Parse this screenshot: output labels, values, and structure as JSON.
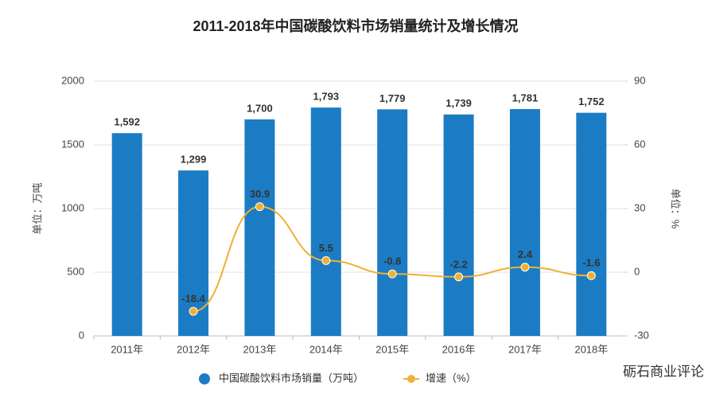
{
  "chart_data": {
    "type": "bar",
    "title": "2011-2018年中国碳酸饮料市场销量统计及增长情况",
    "categories": [
      "2011年",
      "2012年",
      "2013年",
      "2014年",
      "2015年",
      "2016年",
      "2017年",
      "2018年"
    ],
    "y_label": "单位：万吨",
    "y2_label": "单位：%",
    "ylim": [
      0,
      2000
    ],
    "yticks": [
      0,
      500,
      1000,
      1500,
      2000
    ],
    "y2lim": [
      -30,
      90
    ],
    "y2ticks": [
      -30,
      0,
      30,
      60,
      90
    ],
    "series": [
      {
        "name": "中国碳酸饮料市场销量（万吨）",
        "type": "bar",
        "color": "#1b7cc4",
        "values": [
          1592,
          1299,
          1700,
          1793,
          1779,
          1739,
          1781,
          1752
        ],
        "value_labels": [
          "1,592",
          "1,299",
          "1,700",
          "1,793",
          "1,779",
          "1,739",
          "1,781",
          "1,752"
        ]
      },
      {
        "name": "增速（%）",
        "type": "line",
        "axis": "y2",
        "color": "#f0b033",
        "values": [
          null,
          -18.4,
          30.9,
          5.5,
          -0.8,
          -2.2,
          2.4,
          -1.6
        ]
      }
    ],
    "watermark": "砺石商业评论"
  }
}
